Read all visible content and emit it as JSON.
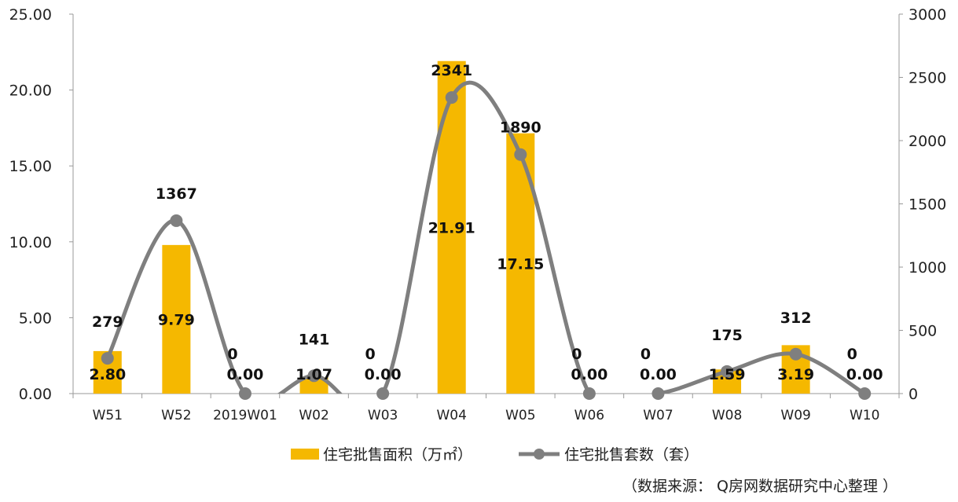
{
  "chart_data": {
    "type": "bar+line",
    "categories": [
      "W51",
      "W52",
      "2019W01",
      "W02",
      "W03",
      "W04",
      "W05",
      "W06",
      "W07",
      "W08",
      "W09",
      "W10"
    ],
    "series": [
      {
        "name": "住宅批售面积（万㎡）",
        "type": "bar",
        "axis": "left",
        "values": [
          2.8,
          9.79,
          0.0,
          1.07,
          0.0,
          21.91,
          17.15,
          0.0,
          0.0,
          1.59,
          3.19,
          0.0
        ],
        "labels": [
          "2.80",
          "9.79",
          "0.00",
          "1.07",
          "0.00",
          "21.91",
          "17.15",
          "0.00",
          "0.00",
          "1.59",
          "3.19",
          "0.00"
        ]
      },
      {
        "name": "住宅批售套数（套）",
        "type": "line",
        "axis": "right",
        "smooth": true,
        "values": [
          279,
          1367,
          0,
          141,
          0,
          2341,
          1890,
          0,
          0,
          175,
          312,
          0
        ],
        "labels": [
          "279",
          "1367",
          "0",
          "141",
          "0",
          "2341",
          "1890",
          "0",
          "0",
          "175",
          "312",
          "0"
        ]
      }
    ],
    "y_left": {
      "ylim": [
        0,
        25
      ],
      "ticks": [
        "0.00",
        "5.00",
        "10.00",
        "15.00",
        "20.00",
        "25.00"
      ]
    },
    "y_right": {
      "ylim": [
        0,
        3000
      ],
      "ticks": [
        "0",
        "500",
        "1000",
        "1500",
        "2000",
        "2500",
        "3000"
      ]
    },
    "colors": {
      "bar": "#F5B800",
      "line": "#7F7F7F",
      "axis": "#999999"
    },
    "legend_position": "bottom-center",
    "grid": false
  },
  "source_note": "（数据来源： Q房网数据研究中心整理 ）"
}
